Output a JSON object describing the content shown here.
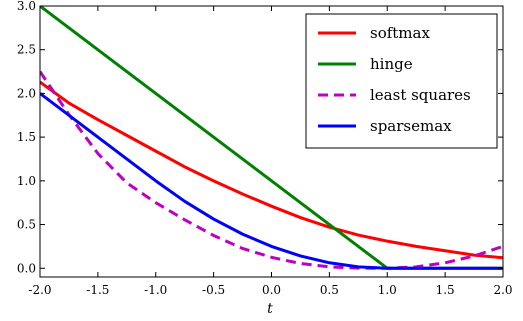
{
  "chart_data": {
    "type": "line",
    "title": "",
    "xlabel": "t",
    "ylabel": "",
    "xlim": [
      -2.0,
      2.0
    ],
    "ylim": [
      -0.1,
      3.0
    ],
    "xticks": [
      "-2.0",
      "-1.5",
      "-1.0",
      "-0.5",
      "0.0",
      "0.5",
      "1.0",
      "1.5",
      "2.0"
    ],
    "yticks": [
      "0.0",
      "0.5",
      "1.0",
      "1.5",
      "2.0",
      "2.5",
      "3.0"
    ],
    "grid": false,
    "legend_position": "top-right",
    "series": [
      {
        "name": "softmax",
        "color": "#ff0000",
        "dash": "solid",
        "x": [
          -2.0,
          -1.75,
          -1.5,
          -1.25,
          -1.0,
          -0.75,
          -0.5,
          -0.25,
          0.0,
          0.25,
          0.5,
          0.75,
          1.0,
          1.25,
          1.5,
          1.75,
          2.0
        ],
        "y": [
          2.13,
          1.89,
          1.7,
          1.52,
          1.34,
          1.16,
          1.0,
          0.85,
          0.71,
          0.58,
          0.47,
          0.38,
          0.31,
          0.25,
          0.2,
          0.15,
          0.12
        ]
      },
      {
        "name": "hinge",
        "color": "#008000",
        "dash": "solid",
        "x": [
          -2.0,
          1.0,
          2.0
        ],
        "y": [
          3.0,
          0.0,
          0.0
        ]
      },
      {
        "name": "least squares",
        "color": "#bf00bf",
        "dash": "dashed",
        "x": [
          -2.0,
          -1.75,
          -1.5,
          -1.25,
          -1.0,
          -0.75,
          -0.5,
          -0.25,
          0.0,
          0.25,
          0.5,
          0.75,
          1.0,
          1.25,
          1.5,
          1.75,
          2.0
        ],
        "y": [
          2.25,
          1.7578,
          1.3125,
          0.9766,
          0.75,
          0.5547,
          0.375,
          0.2266,
          0.125,
          0.0547,
          0.0156,
          0.0016,
          0.0,
          0.0156,
          0.0625,
          0.1406,
          0.25
        ]
      },
      {
        "name": "sparsemax",
        "color": "#0000ff",
        "dash": "solid",
        "x": [
          -2.0,
          -1.0,
          -0.75,
          -0.5,
          -0.25,
          0.0,
          0.25,
          0.5,
          0.75,
          1.0,
          2.0
        ],
        "y": [
          2.0,
          1.0,
          0.7656,
          0.5625,
          0.3906,
          0.25,
          0.1406,
          0.0625,
          0.0156,
          0.0,
          0.0
        ]
      }
    ]
  }
}
